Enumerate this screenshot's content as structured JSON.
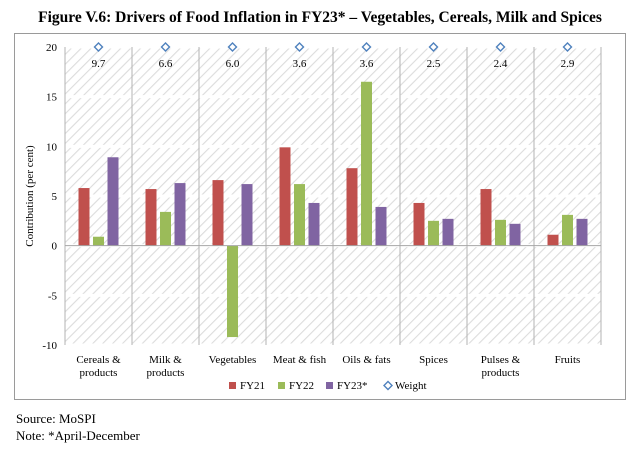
{
  "title": "Figure V.6: Drivers of Food Inflation in FY23* – Vegetables, Cereals, Milk and Spices",
  "source": "Source: MoSPI",
  "note": "Note: *April-December",
  "chart_data": {
    "type": "bar",
    "ylabel": "Contribution (per cent)",
    "xlabel": "",
    "ylim": [
      -10,
      20
    ],
    "yticks": [
      -10,
      -5,
      0,
      5,
      10,
      15,
      20
    ],
    "grid": false,
    "legend_position": "bottom",
    "categories": [
      [
        "Cereals &",
        "products"
      ],
      [
        "Milk &",
        "products"
      ],
      [
        "Vegetables"
      ],
      [
        "Meat & fish"
      ],
      [
        "Oils & fats"
      ],
      [
        "Spices"
      ],
      [
        "Pulses &",
        "products"
      ],
      [
        "Fruits"
      ]
    ],
    "series": [
      {
        "name": "FY21",
        "color": "#c0504d",
        "values": [
          5.8,
          5.7,
          6.6,
          9.9,
          7.8,
          4.3,
          5.7,
          1.1
        ]
      },
      {
        "name": "FY22",
        "color": "#9bbb59",
        "values": [
          0.9,
          3.4,
          -9.2,
          6.2,
          16.5,
          2.5,
          2.6,
          3.1
        ]
      },
      {
        "name": "FY23*",
        "color": "#8064a2",
        "values": [
          8.9,
          6.3,
          6.2,
          4.3,
          3.9,
          2.7,
          2.2,
          2.7
        ]
      }
    ],
    "weight": {
      "name": "Weight",
      "color": "#4f81bd",
      "marker_y": 20,
      "values": [
        "9.7",
        "6.6",
        "6.0",
        "3.6",
        "3.6",
        "2.5",
        "2.4",
        "2.9"
      ]
    }
  }
}
